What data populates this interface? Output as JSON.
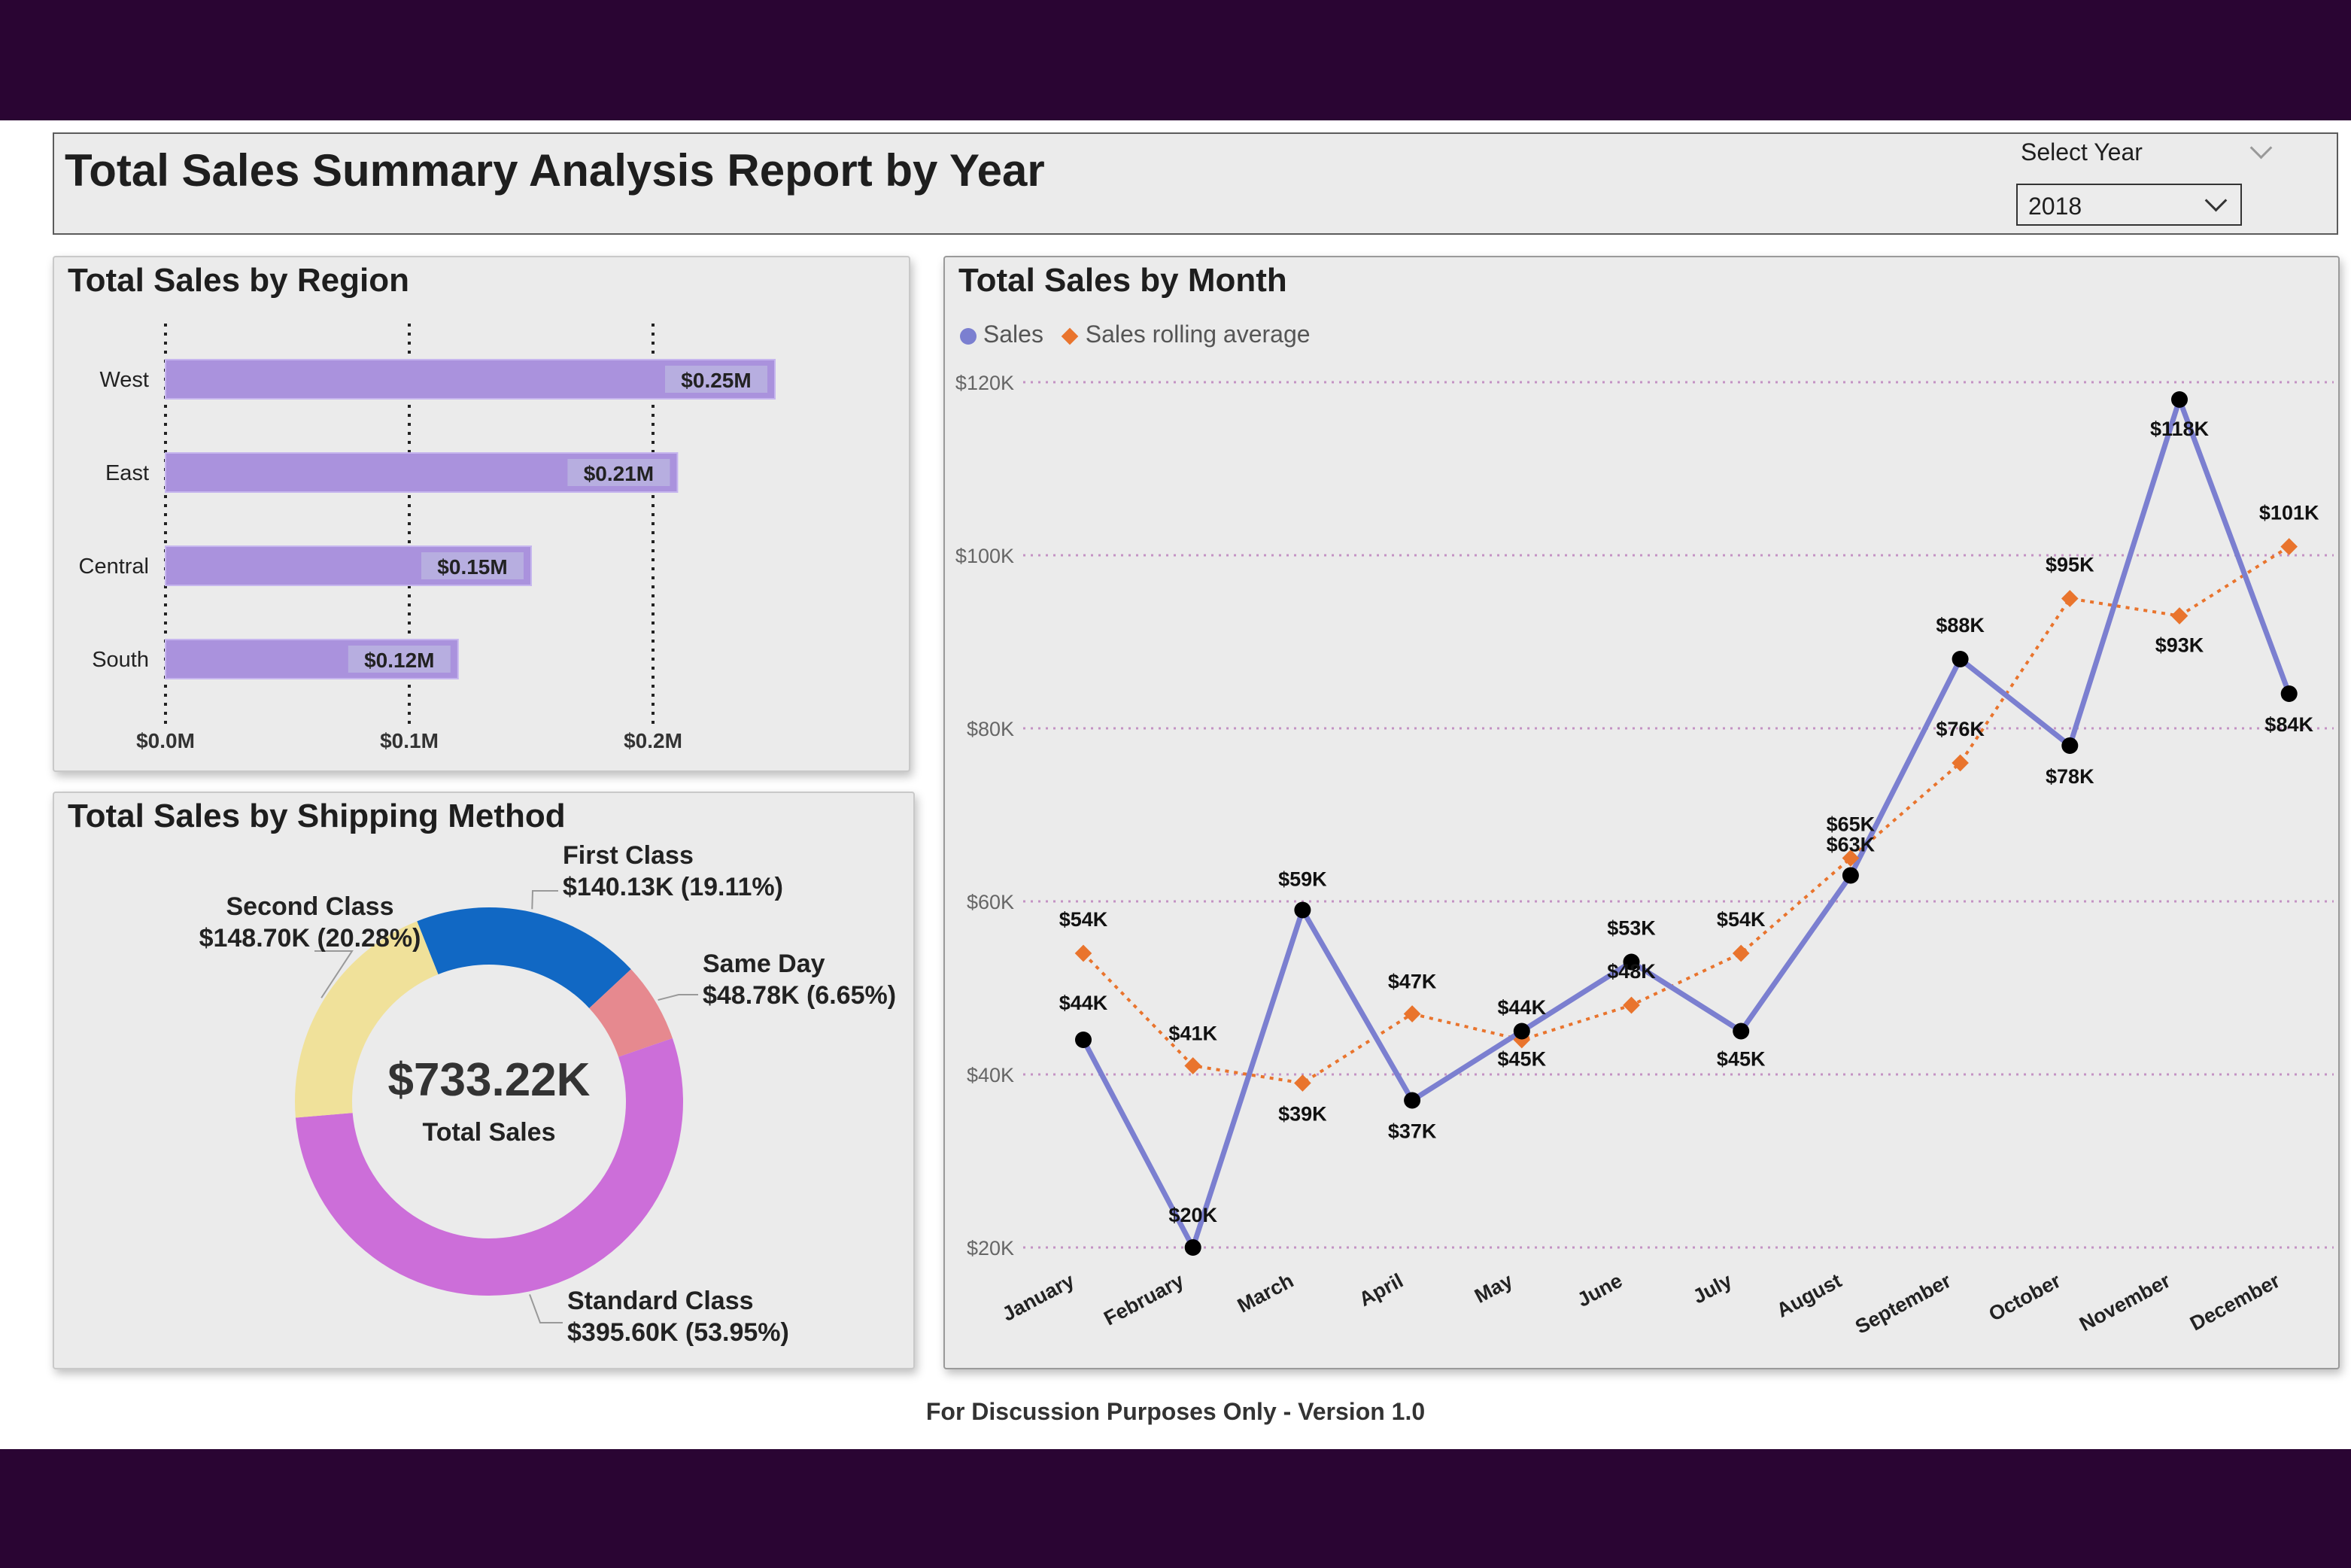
{
  "header": {
    "title": "Total Sales Summary Analysis Report by Year",
    "slicer_label": "Select Year",
    "slicer_value": "2018"
  },
  "footer": "For Discussion Purposes Only - Version 1.0",
  "colors": {
    "bar": "#aa92dd",
    "line_sales": "#7b7fd0",
    "rolling": "#e9742d",
    "first_class": "#1168c4",
    "same_day": "#e6898f",
    "standard_class": "#cc6ed9",
    "second_class": "#f0e19a"
  },
  "chart_data": [
    {
      "type": "bar",
      "orientation": "horizontal",
      "title": "Total Sales by Region",
      "categories": [
        "West",
        "East",
        "Central",
        "South"
      ],
      "values": [
        0.25,
        0.21,
        0.15,
        0.12
      ],
      "data_labels": [
        "$0.25M",
        "$0.21M",
        "$0.15M",
        "$0.12M"
      ],
      "xticks": [
        "$0.0M",
        "$0.1M",
        "$0.2M"
      ],
      "xlim": [
        0,
        0.2
      ],
      "grid": true
    },
    {
      "type": "pie",
      "donut": true,
      "title": "Total Sales by Shipping Method",
      "center_value": "$733.22K",
      "center_label": "Total Sales",
      "slices": [
        {
          "name": "First Class",
          "value": 140.13,
          "label": "$140.13K (19.11%)"
        },
        {
          "name": "Same Day",
          "value": 48.78,
          "label": "$48.78K (6.65%)"
        },
        {
          "name": "Standard Class",
          "value": 395.6,
          "label": "$395.60K (53.95%)"
        },
        {
          "name": "Second Class",
          "value": 148.7,
          "label": "$148.70K (20.28%)"
        }
      ]
    },
    {
      "type": "line",
      "title": "Total Sales by Month",
      "categories": [
        "January",
        "February",
        "March",
        "April",
        "May",
        "June",
        "July",
        "August",
        "September",
        "October",
        "November",
        "December"
      ],
      "series": [
        {
          "name": "Sales",
          "values": [
            44,
            20,
            59,
            37,
            45,
            53,
            45,
            63,
            88,
            78,
            118,
            84
          ],
          "labels": [
            "$44K",
            "$20K",
            "$59K",
            "$37K",
            "$45K",
            "$53K",
            "$45K",
            "$63K",
            "$88K",
            "$78K",
            "$118K",
            "$84K"
          ]
        },
        {
          "name": "Sales rolling average",
          "values": [
            54,
            41,
            39,
            47,
            44,
            48,
            54,
            65,
            76,
            95,
            93,
            101
          ],
          "labels": [
            "$54K",
            "$41K",
            "$39K",
            "$47K",
            "$44K",
            "$48K",
            "$54K",
            "$65K",
            "$76K",
            "$95K",
            "$93K",
            "$101K"
          ]
        }
      ],
      "yticks": [
        "$20K",
        "$40K",
        "$60K",
        "$80K",
        "$100K",
        "$120K"
      ],
      "ylim": [
        20,
        120
      ],
      "legend": "top-left",
      "grid": true
    }
  ]
}
